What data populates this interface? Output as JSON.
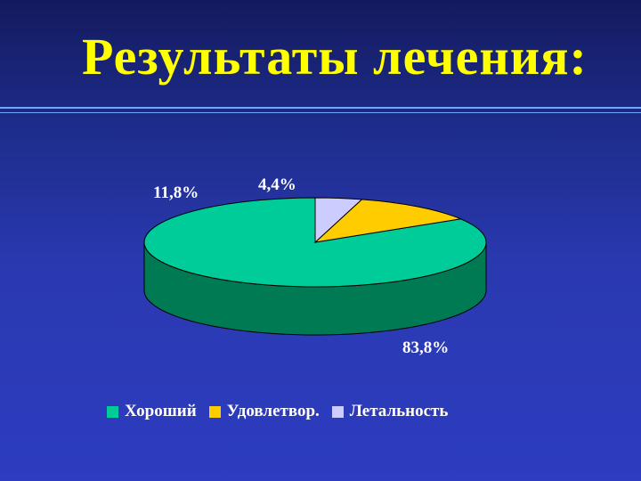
{
  "title": "Результаты лечения:",
  "chart_data": {
    "type": "pie",
    "title": "Результаты лечения:",
    "slices": [
      {
        "name": "Хороший",
        "value": 83.8,
        "label": "83,8%",
        "color": "#00cc99",
        "side_color": "#007a52"
      },
      {
        "name": "Удовлетвор.",
        "value": 11.8,
        "label": "11,8%",
        "color": "#ffcc00",
        "side_color": "#b38f00"
      },
      {
        "name": "Летальность",
        "value": 4.4,
        "label": "4,4%",
        "color": "#ccccff",
        "side_color": "#8f8fbf"
      }
    ],
    "legend_position": "bottom",
    "three_d": true
  }
}
